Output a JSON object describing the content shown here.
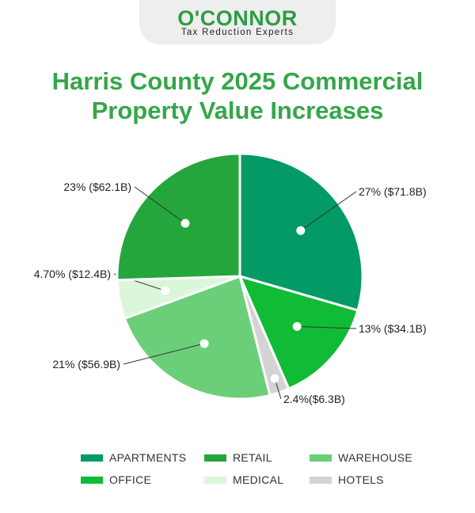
{
  "brand": {
    "name": "O'CONNOR",
    "tagline": "Tax Reduction Experts"
  },
  "chart_data": {
    "type": "pie",
    "title_lines": [
      "Harris County 2025 Commercial",
      "Property Value Increases"
    ],
    "slices": [
      {
        "name": "APARTMENTS",
        "label": "27% ($71.8B)",
        "value": 71.8,
        "color": "#039a65"
      },
      {
        "name": "OFFICE",
        "label": "13% ($34.1B)",
        "value": 34.1,
        "color": "#10bb35"
      },
      {
        "name": "HOTELS",
        "label": "2.4%($6.3B)",
        "value": 6.3,
        "color": "#d3d3d3"
      },
      {
        "name": "WAREHOUSE",
        "label": "21% ($56.9B)",
        "value": 56.9,
        "color": "#6bcf7a"
      },
      {
        "name": "MEDICAL",
        "label": "4.70% ($12.4B)",
        "value": 12.4,
        "color": "#daf7da"
      },
      {
        "name": "RETAIL",
        "label": "23% ($62.1B)",
        "value": 62.1,
        "color": "#24a63c"
      }
    ],
    "legend_order": [
      "APARTMENTS",
      "RETAIL",
      "WAREHOUSE",
      "OFFICE",
      "MEDICAL",
      "HOTELS"
    ],
    "legend_position": "bottom"
  }
}
